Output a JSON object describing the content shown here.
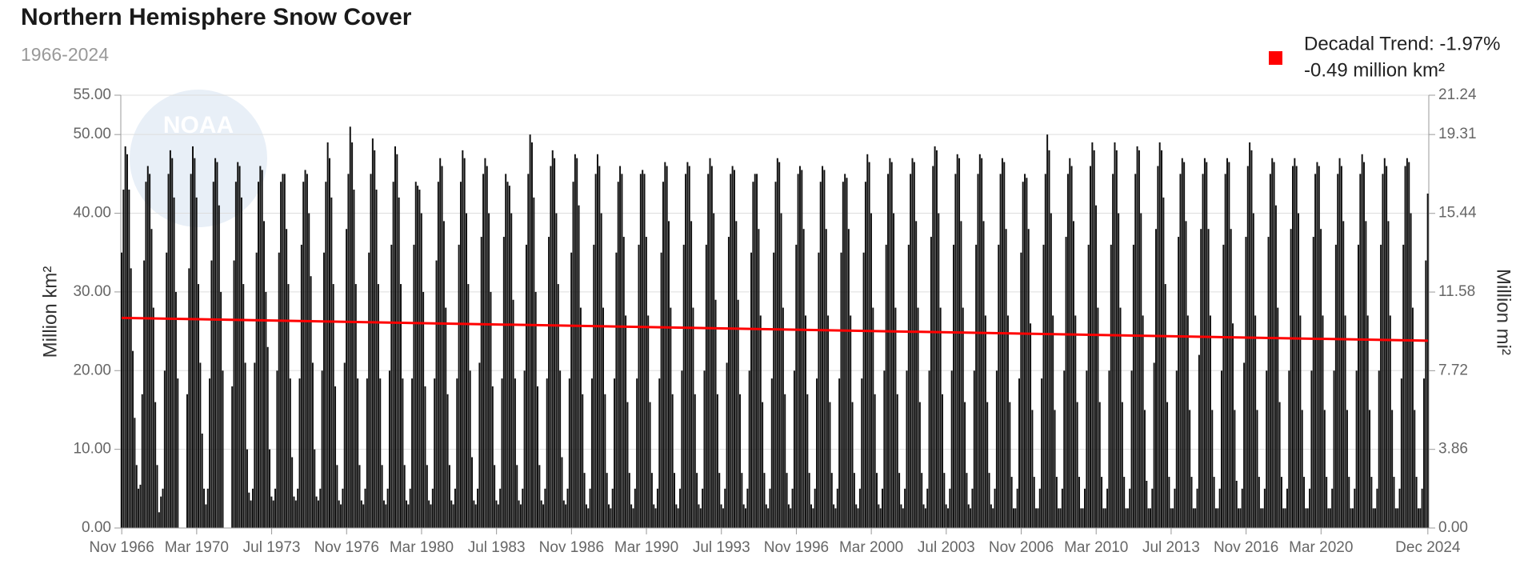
{
  "chart_data": {
    "type": "bar",
    "title": "Northern Hemisphere Snow Cover",
    "subtitle": "1966-2024",
    "watermark": "NOAA",
    "ylabel": "Million km²",
    "y2label": "Million mi²",
    "color": "#111111",
    "ylim": [
      0,
      55
    ],
    "yticks": [
      {
        "value": 0,
        "label": "0.00"
      },
      {
        "value": 10,
        "label": "10.00"
      },
      {
        "value": 20,
        "label": "20.00"
      },
      {
        "value": 30,
        "label": "30.00"
      },
      {
        "value": 40,
        "label": "40.00"
      },
      {
        "value": 50,
        "label": "50.00"
      },
      {
        "value": 55,
        "label": "55.00"
      }
    ],
    "y2lim": [
      0,
      21.24
    ],
    "y2ticks": [
      {
        "value": 0,
        "label": "0.00"
      },
      3.86,
      7.72,
      11.58,
      15.44,
      19.31,
      21.24
    ],
    "grid": true,
    "trend": {
      "name": "Decadal Trend: -1.97%",
      "name2": "-0.49 million km²",
      "color": "#ff0000",
      "values": [
        26.7,
        23.8
      ]
    },
    "categories": [
      "Nov 1966",
      null,
      null,
      null,
      null,
      null,
      null,
      null,
      null,
      null,
      null,
      null,
      null,
      null,
      null,
      null,
      null,
      null,
      null,
      null,
      null,
      null,
      null,
      null,
      null,
      null,
      null,
      null,
      null,
      null,
      null,
      null,
      null,
      null,
      null,
      null,
      null,
      null,
      null,
      null,
      "Mar 1970",
      null,
      null,
      null,
      null,
      null,
      null,
      null,
      null,
      null,
      null,
      null,
      null,
      null,
      null,
      null,
      null,
      null,
      null,
      null,
      null,
      null,
      null,
      null,
      null,
      null,
      null,
      null,
      null,
      null,
      null,
      null,
      null,
      null,
      null,
      null,
      null,
      null,
      null,
      null,
      "Jul 1973",
      null,
      null,
      null,
      null,
      null,
      null,
      null,
      null,
      null,
      null,
      null,
      null,
      null,
      null,
      null,
      null,
      null,
      null,
      null,
      null,
      null,
      null,
      null,
      null,
      null,
      null,
      null,
      null,
      null,
      null,
      null,
      null,
      null,
      null,
      null,
      null,
      null,
      null,
      null,
      "Nov 1976",
      null,
      null,
      null,
      null,
      null,
      null,
      null,
      null,
      null,
      null,
      null,
      null,
      null,
      null,
      null,
      null,
      null,
      null,
      null,
      null,
      null,
      null,
      null,
      null,
      null,
      null,
      null,
      null,
      null,
      null,
      null,
      null,
      null,
      null,
      null,
      null,
      null,
      null,
      null,
      "Mar 1980",
      null,
      null,
      null,
      null,
      null,
      null,
      null,
      null,
      null,
      null,
      null,
      null,
      null,
      null,
      null,
      null,
      null,
      null,
      null,
      null,
      null,
      null,
      null,
      null,
      null,
      null,
      null,
      null,
      null,
      null,
      null,
      null,
      null,
      null,
      null,
      null,
      null,
      null,
      null,
      "Jul 1983",
      null,
      null,
      null,
      null,
      null,
      null,
      null,
      null,
      null,
      null,
      null,
      null,
      null,
      null,
      null,
      null,
      null,
      null,
      null,
      null,
      null,
      null,
      null,
      null,
      null,
      null,
      null,
      null,
      null,
      null,
      null,
      null,
      null,
      null,
      null,
      null,
      null,
      null,
      null,
      "Nov 1986",
      null,
      null,
      null,
      null,
      null,
      null,
      null,
      null,
      null,
      null,
      null,
      null,
      null,
      null,
      null,
      null,
      null,
      null,
      null,
      null,
      null,
      null,
      null,
      null,
      null,
      null,
      null,
      null,
      null,
      null,
      null,
      null,
      null,
      null,
      null,
      null,
      null,
      null,
      null,
      "Mar 1990",
      null,
      null,
      null,
      null,
      null,
      null,
      null,
      null,
      null,
      null,
      null,
      null,
      null,
      null,
      null,
      null,
      null,
      null,
      null,
      null,
      null,
      null,
      null,
      null,
      null,
      null,
      null,
      null,
      null,
      null,
      null,
      null,
      null,
      null,
      null,
      null,
      null,
      null,
      null,
      "Jul 1993",
      null,
      null,
      null,
      null,
      null,
      null,
      null,
      null,
      null,
      null,
      null,
      null,
      null,
      null,
      null,
      null,
      null,
      null,
      null,
      null,
      null,
      null,
      null,
      null,
      null,
      null,
      null,
      null,
      null,
      null,
      null,
      null,
      null,
      null,
      null,
      null,
      null,
      null,
      null,
      "Nov 1996",
      null,
      null,
      null,
      null,
      null,
      null,
      null,
      null,
      null,
      null,
      null,
      null,
      null,
      null,
      null,
      null,
      null,
      null,
      null,
      null,
      null,
      null,
      null,
      null,
      null,
      null,
      null,
      null,
      null,
      null,
      null,
      null,
      null,
      null,
      null,
      null,
      null,
      null,
      null,
      "Mar 2000",
      null,
      null,
      null,
      null,
      null,
      null,
      null,
      null,
      null,
      null,
      null,
      null,
      null,
      null,
      null,
      null,
      null,
      null,
      null,
      null,
      null,
      null,
      null,
      null,
      null,
      null,
      null,
      null,
      null,
      null,
      null,
      null,
      null,
      null,
      null,
      null,
      null,
      null,
      null,
      "Jul 2003",
      null,
      null,
      null,
      null,
      null,
      null,
      null,
      null,
      null,
      null,
      null,
      null,
      null,
      null,
      null,
      null,
      null,
      null,
      null,
      null,
      null,
      null,
      null,
      null,
      null,
      null,
      null,
      null,
      null,
      null,
      null,
      null,
      null,
      null,
      null,
      null,
      null,
      null,
      null,
      "Nov 2006",
      null,
      null,
      null,
      null,
      null,
      null,
      null,
      null,
      null,
      null,
      null,
      null,
      null,
      null,
      null,
      null,
      null,
      null,
      null,
      null,
      null,
      null,
      null,
      null,
      null,
      null,
      null,
      null,
      null,
      null,
      null,
      null,
      null,
      null,
      null,
      null,
      null,
      null,
      null,
      "Mar 2010",
      null,
      null,
      null,
      null,
      null,
      null,
      null,
      null,
      null,
      null,
      null,
      null,
      null,
      null,
      null,
      null,
      null,
      null,
      null,
      null,
      null,
      null,
      null,
      null,
      null,
      null,
      null,
      null,
      null,
      null,
      null,
      null,
      null,
      null,
      null,
      null,
      null,
      null,
      null,
      "Jul 2013",
      null,
      null,
      null,
      null,
      null,
      null,
      null,
      null,
      null,
      null,
      null,
      null,
      null,
      null,
      null,
      null,
      null,
      null,
      null,
      null,
      null,
      null,
      null,
      null,
      null,
      null,
      null,
      null,
      null,
      null,
      null,
      null,
      null,
      null,
      null,
      null,
      null,
      null,
      null,
      "Nov 2016",
      null,
      null,
      null,
      null,
      null,
      null,
      null,
      null,
      null,
      null,
      null,
      null,
      null,
      null,
      null,
      null,
      null,
      null,
      null,
      null,
      null,
      null,
      null,
      null,
      null,
      null,
      null,
      null,
      null,
      null,
      null,
      null,
      null,
      null,
      null,
      null,
      null,
      null,
      null,
      "Mar 2020",
      null,
      null,
      null,
      null,
      null,
      null,
      null,
      null,
      null,
      null,
      null,
      null,
      null,
      null,
      null,
      null,
      null,
      null,
      null,
      null,
      null,
      null,
      null,
      null,
      null,
      null,
      null,
      null,
      null,
      null,
      null,
      null,
      null,
      null,
      null,
      null,
      null,
      null,
      null,
      null,
      null,
      null,
      null,
      null,
      null,
      null,
      null,
      null,
      null,
      null,
      null,
      null,
      null,
      null,
      null,
      null,
      "Dec 2024"
    ],
    "values": [
      35,
      43,
      48.5,
      47.5,
      43,
      33,
      22.5,
      14,
      8,
      5,
      5.5,
      17,
      34,
      44,
      46,
      45,
      38,
      28,
      16,
      8,
      2,
      4,
      5,
      20,
      35,
      45,
      48,
      47,
      42,
      30,
      19,
      null,
      null,
      null,
      null,
      17,
      33,
      45,
      48.5,
      47,
      42,
      31,
      21,
      12,
      5,
      3,
      5,
      19,
      34,
      44,
      47,
      46.5,
      41,
      30,
      20,
      null,
      null,
      null,
      null,
      18,
      34,
      44,
      46.5,
      46,
      42,
      31,
      21,
      10,
      4.5,
      3.5,
      5,
      21,
      35,
      44,
      46,
      45.5,
      39,
      30,
      23,
      10,
      4,
      3.5,
      5,
      20,
      35,
      44,
      45,
      45,
      38,
      31,
      19,
      9,
      4,
      3.5,
      5,
      19,
      36,
      44,
      45.5,
      45,
      40,
      32,
      21,
      10,
      4,
      3.5,
      5,
      20,
      35,
      44,
      49,
      47,
      42,
      31,
      18,
      8,
      3.5,
      3,
      5,
      21,
      38,
      45,
      51,
      49,
      43,
      31,
      19,
      8,
      3.5,
      3,
      5,
      19,
      35,
      45,
      49.5,
      48,
      43,
      31,
      19,
      8,
      3.5,
      3,
      5,
      20,
      36,
      44,
      48.5,
      47.5,
      42,
      31,
      19,
      8,
      3.5,
      3,
      5,
      19,
      36,
      44,
      43.5,
      43,
      40,
      30,
      18,
      8,
      3.5,
      3,
      5,
      19,
      34,
      44,
      47,
      46,
      39,
      28,
      17,
      8,
      3.5,
      3,
      5,
      19,
      36,
      44,
      48,
      47,
      40,
      31,
      20,
      9,
      3.5,
      3,
      5,
      21,
      37,
      45,
      47,
      46,
      40,
      30,
      18,
      8,
      3.5,
      3,
      5,
      19,
      37,
      45,
      44,
      43.5,
      40,
      29,
      19,
      8,
      3.5,
      3,
      5,
      20,
      36,
      45,
      50,
      49,
      42,
      30,
      18,
      8,
      3.5,
      3,
      5,
      19,
      37,
      46,
      48,
      47,
      40,
      31,
      20,
      9,
      3.5,
      3,
      5,
      19,
      35,
      44,
      47.5,
      47,
      41,
      28,
      17,
      7,
      3,
      2.5,
      5,
      19,
      36,
      45,
      47.5,
      46,
      40,
      28,
      17,
      7,
      3,
      2.5,
      5,
      19,
      35,
      44,
      46,
      45,
      37,
      27,
      16,
      7,
      3,
      2.5,
      5,
      19,
      36,
      45,
      45.5,
      45,
      37,
      27,
      16,
      7,
      3,
      2.5,
      5,
      19,
      35,
      44,
      46.5,
      46,
      39,
      28,
      17,
      7,
      3,
      2.5,
      5,
      20,
      36,
      45,
      46.5,
      46,
      39,
      28,
      17,
      7,
      3,
      2.5,
      5,
      20,
      36,
      45,
      47,
      46,
      40,
      29,
      17,
      7,
      3,
      2.5,
      5,
      21,
      37,
      45,
      46,
      45.5,
      39,
      29,
      17,
      7,
      3,
      2.5,
      5,
      20,
      35,
      44,
      45,
      45,
      38,
      27,
      16,
      7,
      3,
      2.5,
      5,
      19,
      35,
      44,
      47,
      46.5,
      40,
      28,
      17,
      7,
      3,
      2.5,
      5,
      20,
      36,
      45,
      46,
      45.5,
      38,
      27,
      17,
      7,
      3,
      2.5,
      5,
      19,
      35,
      44,
      46,
      45.5,
      38,
      27,
      16,
      7,
      3,
      2.5,
      5,
      19,
      35,
      44,
      45,
      44.5,
      38,
      27,
      16,
      7,
      3,
      2.5,
      5,
      19,
      35,
      44,
      47.5,
      46.5,
      40,
      28,
      17,
      7,
      3,
      2.5,
      5,
      20,
      36,
      45,
      47,
      46.5,
      40,
      28,
      17,
      7,
      3,
      2.5,
      5,
      20,
      36,
      45,
      47,
      46.5,
      39,
      28,
      16,
      7,
      3,
      2.5,
      5,
      20,
      37,
      46,
      48.5,
      48,
      40,
      28,
      17,
      7,
      3,
      2.5,
      5,
      20,
      36,
      45,
      47.5,
      47,
      39,
      28,
      16,
      7,
      3,
      2.5,
      5,
      20,
      36,
      45,
      47.5,
      47,
      39,
      27,
      16,
      7,
      3,
      2.5,
      5,
      20,
      36,
      45,
      47,
      46.5,
      38,
      27,
      16,
      6.5,
      2.5,
      2.5,
      5,
      19,
      35,
      44,
      45,
      44.5,
      38,
      26,
      15,
      6.5,
      2.5,
      2.5,
      5,
      19,
      36,
      45,
      50,
      48,
      40,
      27,
      15,
      6.5,
      2.5,
      2.5,
      5,
      20,
      37,
      45,
      47,
      46,
      39,
      27,
      16,
      6.5,
      2.5,
      2.5,
      5,
      20,
      36,
      46,
      49,
      48,
      41,
      28,
      16,
      6.5,
      2.5,
      2.5,
      5,
      20,
      36,
      45,
      49,
      48,
      40,
      28,
      16,
      6.5,
      2.5,
      2.5,
      5,
      20,
      36,
      45,
      48.5,
      48,
      40,
      27,
      15,
      6,
      2.5,
      2.5,
      5,
      21,
      38,
      46,
      49,
      48,
      42,
      31,
      16,
      6.5,
      2.5,
      2.5,
      5,
      20,
      37,
      45,
      47,
      46.5,
      39,
      27,
      15,
      6.5,
      2.5,
      2.5,
      5,
      22,
      38,
      45,
      47,
      46.5,
      38,
      27,
      15,
      6.5,
      2.5,
      2.5,
      5,
      20,
      36,
      45,
      47,
      46.5,
      38,
      26,
      15,
      6,
      2.5,
      2.5,
      5,
      21,
      37,
      46,
      49,
      48,
      40,
      27,
      15,
      6.5,
      2.5,
      2.5,
      5,
      20,
      37,
      45,
      47,
      46.5,
      41,
      28,
      16,
      6.5,
      2.5,
      2.5,
      5,
      20,
      38,
      46,
      47,
      46,
      40,
      27,
      15,
      6.5,
      2.5,
      2.5,
      5,
      20,
      37,
      45,
      46.5,
      46,
      38,
      27,
      15,
      6.5,
      2.5,
      2.5,
      5,
      20,
      36,
      45,
      47,
      46,
      39,
      27,
      15,
      6.5,
      2.5,
      2.5,
      5,
      20,
      36,
      45,
      47.5,
      46.5,
      39,
      27,
      15,
      6.5,
      2.5,
      2.5,
      5,
      20,
      36,
      45,
      47,
      46,
      39,
      27,
      15,
      6.5,
      2.5,
      2.5,
      5,
      19,
      36,
      46,
      47,
      46.5,
      40,
      28,
      15,
      6.5,
      2.5,
      2.5,
      5,
      19,
      34,
      42.5
    ]
  }
}
